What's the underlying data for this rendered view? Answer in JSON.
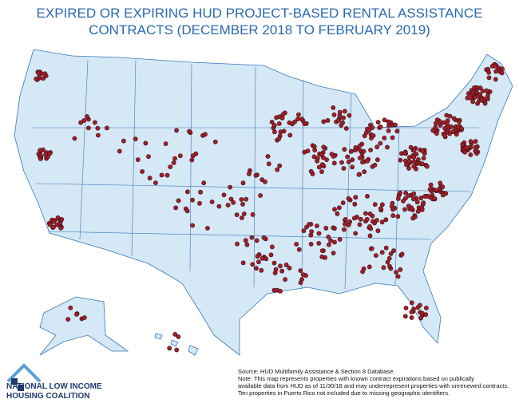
{
  "title": {
    "line1": "EXPIRED OR EXPIRING HUD PROJECT-BASED RENTAL ASSISTANCE",
    "line2": "CONTRACTS (DECEMBER 2018 TO FEBRUARY 2019)"
  },
  "footnote": {
    "lines": [
      "Source: HUD Multifamily Assistance & Section 8 Database.",
      "Note: This map represents properties with known contract expirations based on publically",
      "available data from HUD as of 11/30/18 and may underrepresent properties with unrenewed contracts.",
      "Ten properties in Puerto Rico not included due to missing geographic identifiers."
    ]
  },
  "logo": {
    "line1": "NATIONAL LOW INCOME",
    "line2": "HOUSING COALITION"
  }
}
